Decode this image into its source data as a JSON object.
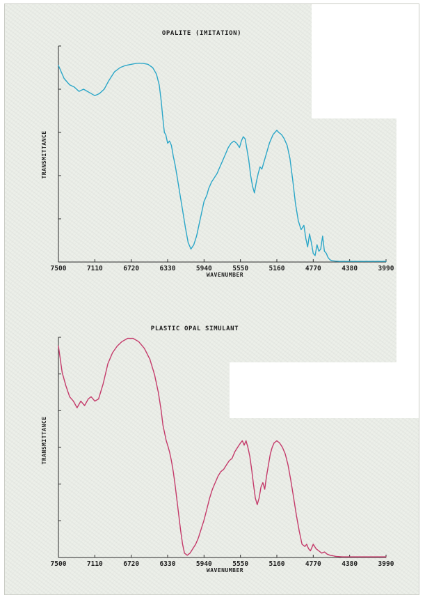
{
  "chart_data": [
    {
      "type": "line",
      "title": "OPALITE (IMITATION)",
      "xlabel": "WAVENUMBER",
      "ylabel": "TRANSMITTANCE",
      "x_ticks": [
        "7500",
        "7110",
        "6720",
        "6330",
        "5940",
        "5550",
        "5160",
        "4770",
        "4380",
        "3990"
      ],
      "xlim": [
        7500,
        3990
      ],
      "ylim": [
        0,
        100
      ],
      "y_tick_count": 6,
      "line_color": "#2aa6c8",
      "series": [
        {
          "x": [
            7500,
            7440,
            7380,
            7330,
            7280,
            7230,
            7190,
            7150,
            7110,
            7060,
            7010,
            6960,
            6900,
            6840,
            6780,
            6720,
            6660,
            6600,
            6540,
            6490,
            6450,
            6420,
            6400,
            6380,
            6365,
            6350,
            6330,
            6310,
            6290,
            6270,
            6250,
            6230,
            6200,
            6170,
            6140,
            6110,
            6080,
            6050,
            6020,
            5990,
            5970,
            5940,
            5910,
            5890,
            5860,
            5830,
            5800,
            5770,
            5740,
            5710,
            5680,
            5650,
            5620,
            5590,
            5560,
            5540,
            5520,
            5500,
            5480,
            5460,
            5440,
            5420,
            5400,
            5380,
            5360,
            5340,
            5320,
            5300,
            5280,
            5260,
            5240,
            5220,
            5200,
            5180,
            5160,
            5140,
            5110,
            5080,
            5050,
            5020,
            4990,
            4960,
            4930,
            4900,
            4870,
            4850,
            4830,
            4810,
            4790,
            4770,
            4750,
            4730,
            4710,
            4690,
            4670,
            4650,
            4630,
            4610,
            4590,
            4570,
            4550,
            4520,
            4490,
            4450,
            4410,
            4380,
            4300,
            4200,
            4100,
            3990
          ],
          "y": [
            91,
            85,
            82,
            81,
            79,
            80,
            79,
            78,
            77,
            78,
            80,
            84,
            88,
            90,
            91,
            91.5,
            92,
            92,
            91.5,
            90,
            87,
            82,
            75,
            66,
            60,
            59,
            55,
            56,
            54,
            49,
            45,
            40,
            32,
            24,
            16,
            9,
            6,
            8,
            12,
            18,
            22,
            28,
            31,
            34,
            37,
            39,
            41,
            44,
            47,
            50,
            53,
            55,
            56,
            55,
            53,
            56,
            58,
            57,
            52,
            47,
            40,
            35,
            32,
            37,
            41,
            44,
            43,
            46,
            49,
            52,
            55,
            57,
            59,
            60,
            61,
            60,
            59,
            57,
            54,
            48,
            38,
            27,
            19,
            15,
            17,
            11,
            7,
            13,
            9,
            4,
            3,
            8,
            5,
            6,
            12,
            5,
            4,
            2,
            1,
            0.6,
            0.5,
            0.4,
            0.3,
            0.3,
            0.3,
            0.3,
            0.3,
            0.3,
            0.3,
            0.3
          ]
        }
      ]
    },
    {
      "type": "line",
      "title": "PLASTIC OPAL SIMULANT",
      "xlabel": "WAVENUMBER",
      "ylabel": "TRANSMITTANCE",
      "x_ticks": [
        "7500",
        "7110",
        "6720",
        "6330",
        "5940",
        "5550",
        "5160",
        "4770",
        "4380",
        "3990"
      ],
      "xlim": [
        7500,
        3990
      ],
      "ylim": [
        0,
        100
      ],
      "y_tick_count": 7,
      "line_color": "#c43a6a",
      "series": [
        {
          "x": [
            7500,
            7460,
            7420,
            7380,
            7340,
            7300,
            7260,
            7220,
            7180,
            7150,
            7110,
            7070,
            7020,
            6970,
            6920,
            6870,
            6820,
            6760,
            6700,
            6640,
            6580,
            6520,
            6470,
            6430,
            6400,
            6380,
            6360,
            6345,
            6330,
            6310,
            6290,
            6270,
            6250,
            6230,
            6210,
            6190,
            6170,
            6150,
            6120,
            6090,
            6060,
            6030,
            6000,
            5970,
            5940,
            5910,
            5880,
            5850,
            5820,
            5790,
            5760,
            5730,
            5700,
            5670,
            5640,
            5610,
            5580,
            5550,
            5530,
            5510,
            5490,
            5470,
            5450,
            5430,
            5410,
            5390,
            5370,
            5350,
            5330,
            5310,
            5290,
            5270,
            5250,
            5230,
            5210,
            5190,
            5160,
            5130,
            5100,
            5070,
            5040,
            5010,
            4980,
            4950,
            4920,
            4890,
            4860,
            4840,
            4820,
            4800,
            4780,
            4770,
            4740,
            4710,
            4680,
            4650,
            4620,
            4590,
            4560,
            4530,
            4500,
            4460,
            4420,
            4380,
            4300,
            4200,
            4100,
            3990
          ],
          "y": [
            96,
            84,
            78,
            73,
            71,
            68,
            71,
            69,
            72,
            73,
            71,
            72,
            79,
            88,
            93,
            96,
            98,
            99.5,
            99.5,
            98,
            95,
            90,
            83,
            75,
            67,
            60,
            56,
            53,
            51,
            48,
            44,
            39,
            33,
            26,
            19,
            12,
            6,
            2,
            1,
            2,
            4,
            6,
            9,
            13,
            17,
            22,
            27,
            31,
            34,
            37,
            39,
            40,
            42,
            44,
            45,
            48,
            50,
            52,
            53,
            51,
            53,
            50,
            46,
            40,
            33,
            27,
            24,
            27,
            32,
            34,
            31,
            37,
            42,
            47,
            50,
            52,
            53,
            52,
            50,
            47,
            42,
            35,
            27,
            19,
            12,
            6,
            5,
            6,
            4,
            3,
            5,
            6,
            4,
            3,
            2,
            2.5,
            1.5,
            1,
            0.8,
            0.5,
            0.4,
            0.3,
            0.3,
            0.3,
            0.3,
            0.3,
            0.3,
            0.3
          ]
        }
      ]
    }
  ]
}
